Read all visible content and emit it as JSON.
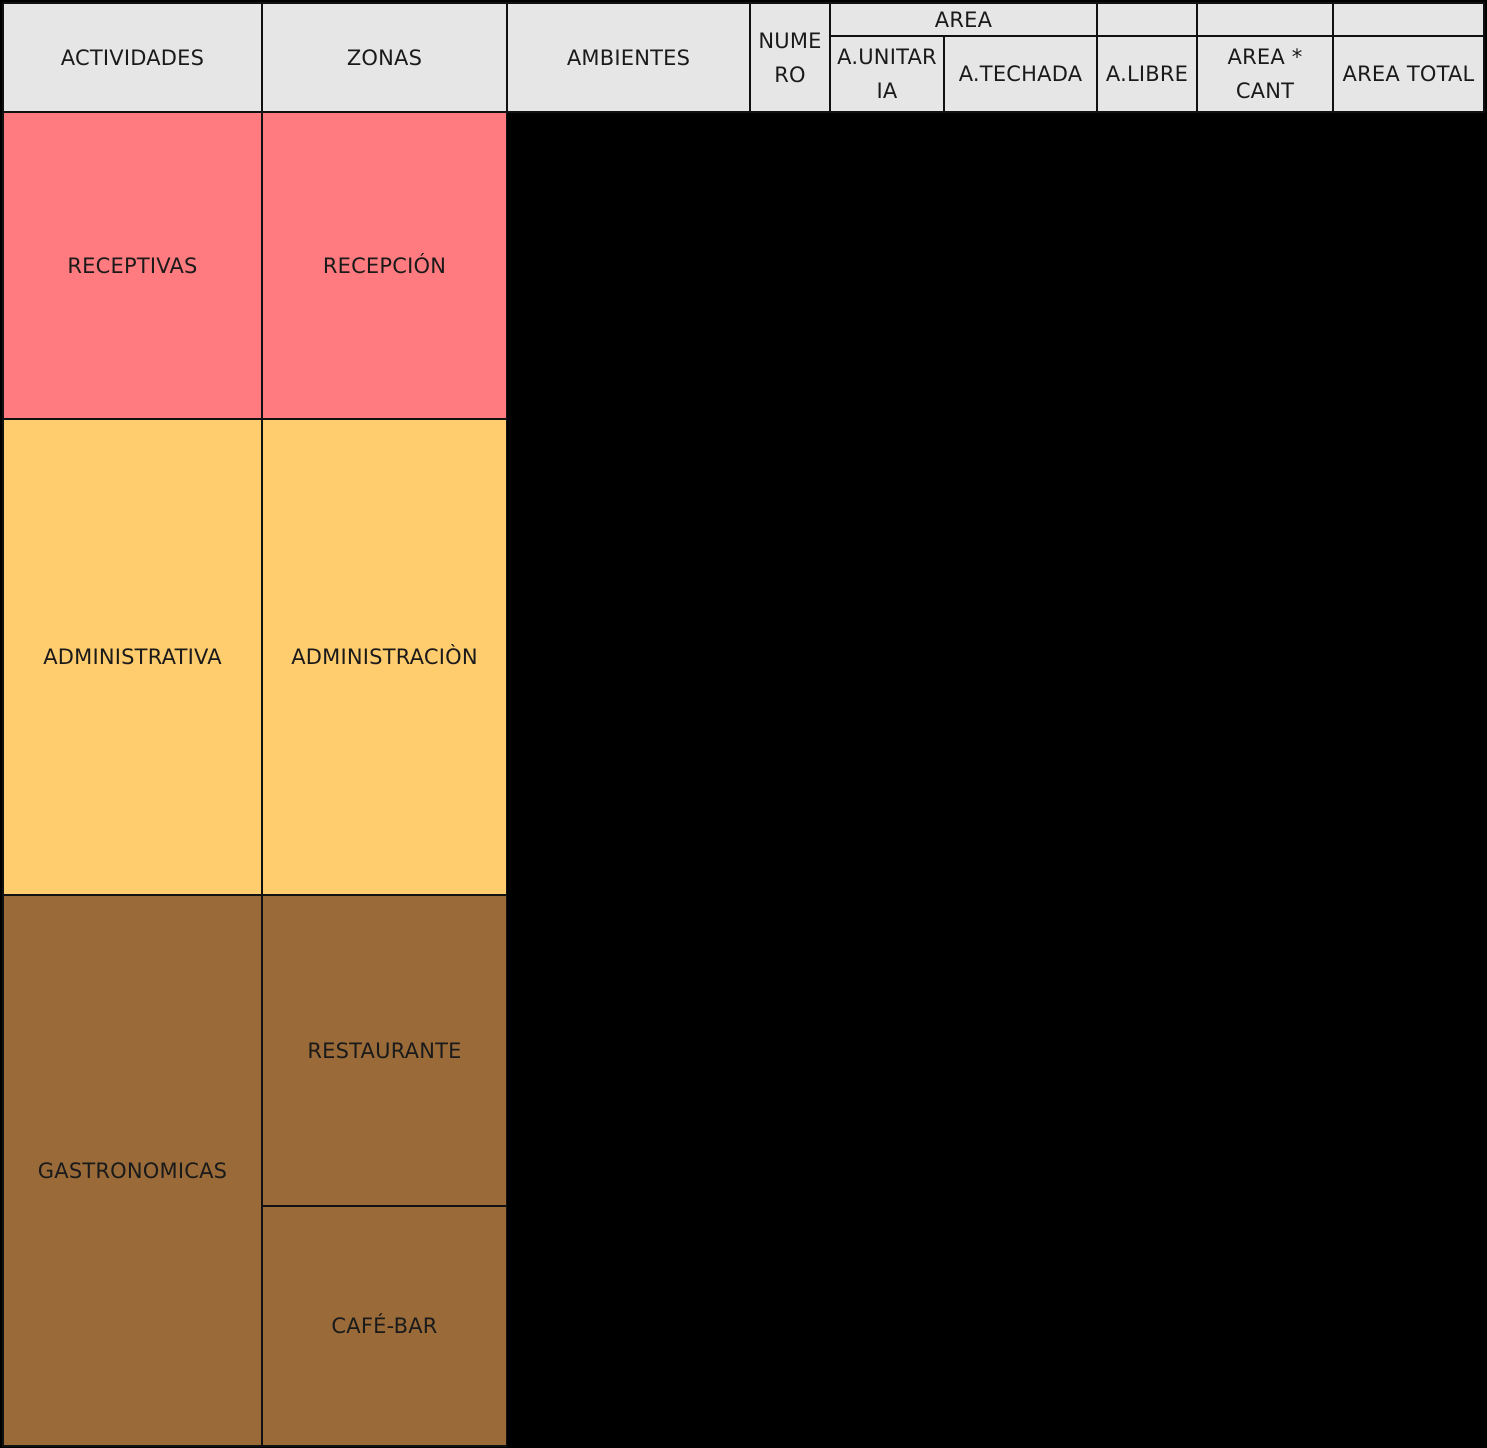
{
  "header": {
    "actividades": "ACTIVIDADES",
    "zonas": "ZONAS",
    "ambientes": "AMBIENTES",
    "numero": "NUMERO",
    "area_group": "AREA",
    "a_unitaria": "A.UNITARIA",
    "a_techada": "A.TECHADA",
    "a_libre": "A.LIBRE",
    "area_cant": "AREA * CANT",
    "area_total": "AREA TOTAL"
  },
  "rows": {
    "receptivas": {
      "actividad": "RECEPTIVAS",
      "zona": "RECEPCIÓN"
    },
    "administrativa": {
      "actividad": "ADMINISTRATIVA",
      "zona": "ADMINISTRACIÒN"
    },
    "gastronomicas": {
      "actividad": "GASTRONOMICAS",
      "zonas": [
        "RESTAURANTE",
        "CAFÉ-BAR"
      ]
    }
  },
  "colors": {
    "header_bg": "#e6e6e6",
    "receptivas": "#ff7b7f",
    "administrativa": "#ffcc6e",
    "gastronomicas": "#9a6b39",
    "data_area": "#000000"
  }
}
